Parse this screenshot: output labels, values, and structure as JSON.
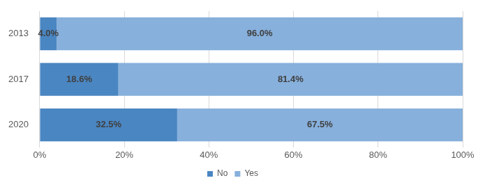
{
  "chart_data": {
    "type": "bar",
    "orientation": "horizontal",
    "stacked": true,
    "categories": [
      "2013",
      "2017",
      "2020"
    ],
    "series": [
      {
        "name": "No",
        "color": "#4a86c2",
        "values": [
          4.0,
          18.6,
          32.5
        ],
        "value_labels": [
          "4.0%",
          "18.6%",
          "32.5%"
        ]
      },
      {
        "name": "Yes",
        "color": "#87b0dc",
        "values": [
          96.0,
          81.4,
          67.5
        ],
        "value_labels": [
          "96.0%",
          "81.4%",
          "67.5%"
        ]
      }
    ],
    "xlim": [
      0,
      100
    ],
    "xticks": [
      {
        "value": 0,
        "label": "0%"
      },
      {
        "value": 20,
        "label": "20%"
      },
      {
        "value": 40,
        "label": "40%"
      },
      {
        "value": 60,
        "label": "60%"
      },
      {
        "value": 80,
        "label": "80%"
      },
      {
        "value": 100,
        "label": "100%"
      }
    ],
    "grid": true,
    "legend": "bottom",
    "data_labels": true
  }
}
